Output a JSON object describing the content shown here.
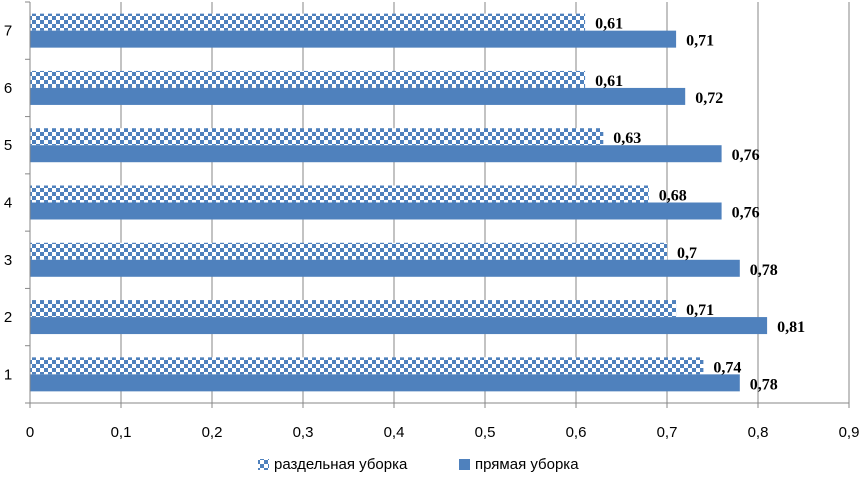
{
  "chart_data": {
    "type": "bar",
    "orientation": "horizontal",
    "categories": [
      "1",
      "2",
      "3",
      "4",
      "5",
      "6",
      "7"
    ],
    "series": [
      {
        "name": "раздельная уборка",
        "values": [
          0.74,
          0.71,
          0.7,
          0.68,
          0.63,
          0.61,
          0.61
        ],
        "labels": [
          "0,74",
          "0,71",
          "0,7",
          "0,68",
          "0,63",
          "0,61",
          "0,61"
        ],
        "pattern": "checker",
        "color": "#4F81BD"
      },
      {
        "name": "прямая уборка",
        "values": [
          0.78,
          0.81,
          0.78,
          0.76,
          0.76,
          0.72,
          0.71
        ],
        "labels": [
          "0,78",
          "0,81",
          "0,78",
          "0,76",
          "0,76",
          "0,72",
          "0,71"
        ],
        "pattern": "solid",
        "color": "#4F81BD"
      }
    ],
    "xlim": [
      0,
      0.9
    ],
    "xticks": [
      0,
      0.1,
      0.2,
      0.3,
      0.4,
      0.5,
      0.6,
      0.7,
      0.8,
      0.9
    ],
    "xtick_labels": [
      "0",
      "0,1",
      "0,2",
      "0,3",
      "0,4",
      "0,5",
      "0,6",
      "0,7",
      "0,8",
      "0,9"
    ],
    "grid": "vertical",
    "legend": "bottom"
  }
}
